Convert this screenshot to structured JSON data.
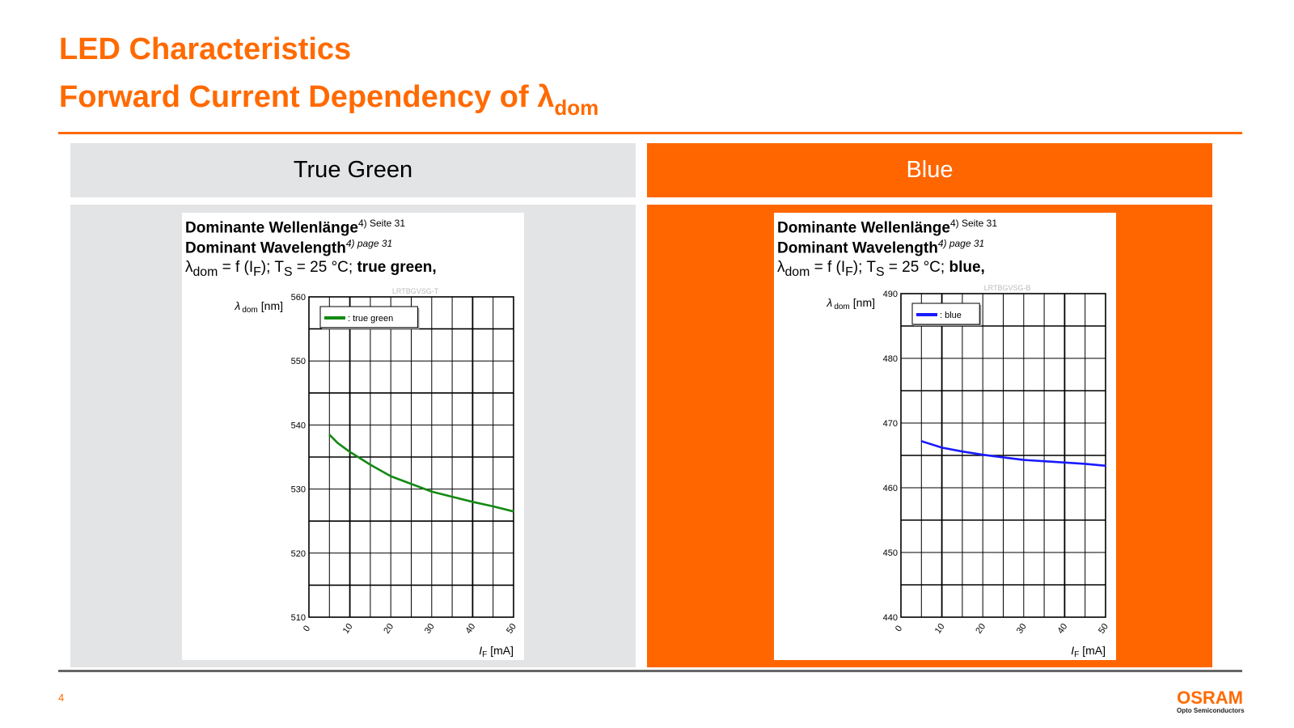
{
  "slide": {
    "title_line1": "LED Characteristics",
    "title_line2": "Forward Current Dependency of λ",
    "title_line2_sub": "dom",
    "page_number": "4",
    "logo_brand": "OSRAM",
    "logo_tagline": "Opto Semiconductors",
    "accent_color": "#ff6a00"
  },
  "panels": [
    {
      "header": "True Green",
      "header_bg": "#e3e4e5",
      "body_bg": "#e3e4e5"
    },
    {
      "header": "Blue",
      "header_bg": "#ff6600",
      "body_bg": "#ff6600"
    }
  ],
  "chart_data": [
    {
      "type": "line",
      "caption_de": "Dominante Wellenlänge",
      "caption_de_note": "4) Seite 31",
      "caption_en": "Dominant Wavelength",
      "caption_en_note": "4) page 31",
      "caption_formula_prefix": "λ",
      "caption_formula_sub1": "dom",
      "caption_formula_mid": " = f (I",
      "caption_formula_sub2": "F",
      "caption_formula_mid2": "); T",
      "caption_formula_sub3": "S",
      "caption_formula_end": " = 25 °C; ",
      "caption_formula_bold": "true green,",
      "code": "LRTBGVSG-T",
      "ylabel_main": "λ",
      "ylabel_sub": "dom",
      "ylabel_unit": "[nm]",
      "xlabel_main": "I",
      "xlabel_sub": "F",
      "xlabel_unit": "[mA]",
      "xlim": [
        0,
        50
      ],
      "ylim": [
        510,
        560
      ],
      "xticks": [
        "0",
        "10",
        "20",
        "30",
        "40",
        "50"
      ],
      "yticks": [
        "510",
        "520",
        "530",
        "540",
        "550",
        "560"
      ],
      "grid": true,
      "legend_position": "top-left",
      "series": [
        {
          "name": ": true green",
          "color": "#138a13",
          "x": [
            5,
            7,
            10,
            15,
            20,
            25,
            30,
            35,
            40,
            45,
            50
          ],
          "y": [
            538.5,
            537.2,
            535.8,
            533.8,
            532.0,
            530.8,
            529.6,
            528.8,
            528.0,
            527.3,
            526.5
          ]
        }
      ]
    },
    {
      "type": "line",
      "caption_de": "Dominante Wellenlänge",
      "caption_de_note": "4) Seite 31",
      "caption_en": "Dominant Wavelength",
      "caption_en_note": "4) page 31",
      "caption_formula_prefix": "λ",
      "caption_formula_sub1": "dom",
      "caption_formula_mid": " = f (I",
      "caption_formula_sub2": "F",
      "caption_formula_mid2": "); T",
      "caption_formula_sub3": "S",
      "caption_formula_end": " = 25 °C; ",
      "caption_formula_bold": "blue,",
      "code": "LRTBGVSG-B",
      "ylabel_main": "λ",
      "ylabel_sub": "dom",
      "ylabel_unit": "[nm]",
      "xlabel_main": "I",
      "xlabel_sub": "F",
      "xlabel_unit": "[mA]",
      "xlim": [
        0,
        50
      ],
      "ylim": [
        440,
        490
      ],
      "xticks": [
        "0",
        "10",
        "20",
        "30",
        "40",
        "50"
      ],
      "yticks": [
        "440",
        "450",
        "460",
        "470",
        "480",
        "490"
      ],
      "grid": true,
      "legend_position": "top-left",
      "series": [
        {
          "name": ": blue",
          "color": "#1a1aff",
          "x": [
            5,
            10,
            15,
            20,
            25,
            30,
            35,
            40,
            45,
            50
          ],
          "y": [
            467.2,
            466.2,
            465.6,
            465.1,
            464.7,
            464.3,
            464.1,
            463.9,
            463.7,
            463.4
          ]
        }
      ]
    }
  ]
}
